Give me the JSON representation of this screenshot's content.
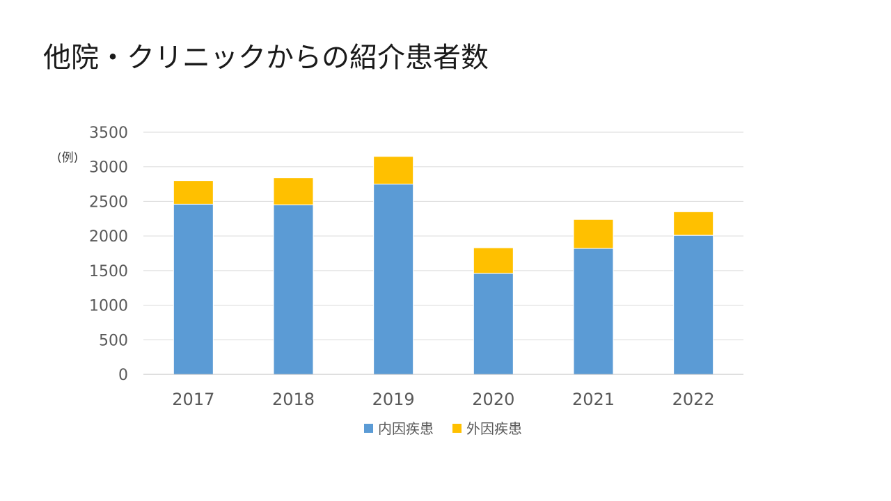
{
  "slide": {
    "title": "他院・クリニックからの紹介患者数"
  },
  "chart_data": {
    "type": "bar",
    "stacked": true,
    "unit_label": "(例)",
    "categories": [
      "2017",
      "2018",
      "2019",
      "2020",
      "2021",
      "2022"
    ],
    "series": [
      {
        "name": "内因疾患",
        "values": [
          2460,
          2450,
          2750,
          1460,
          1820,
          2010
        ],
        "color": "#5b9bd5"
      },
      {
        "name": "外因疾患",
        "values": [
          340,
          390,
          400,
          370,
          420,
          340
        ],
        "color": "#ffc000"
      }
    ],
    "ylim": [
      0,
      3500
    ],
    "yticks": [
      0,
      500,
      1000,
      1500,
      2000,
      2500,
      3000,
      3500
    ],
    "grid": true,
    "legend": "bottom"
  }
}
